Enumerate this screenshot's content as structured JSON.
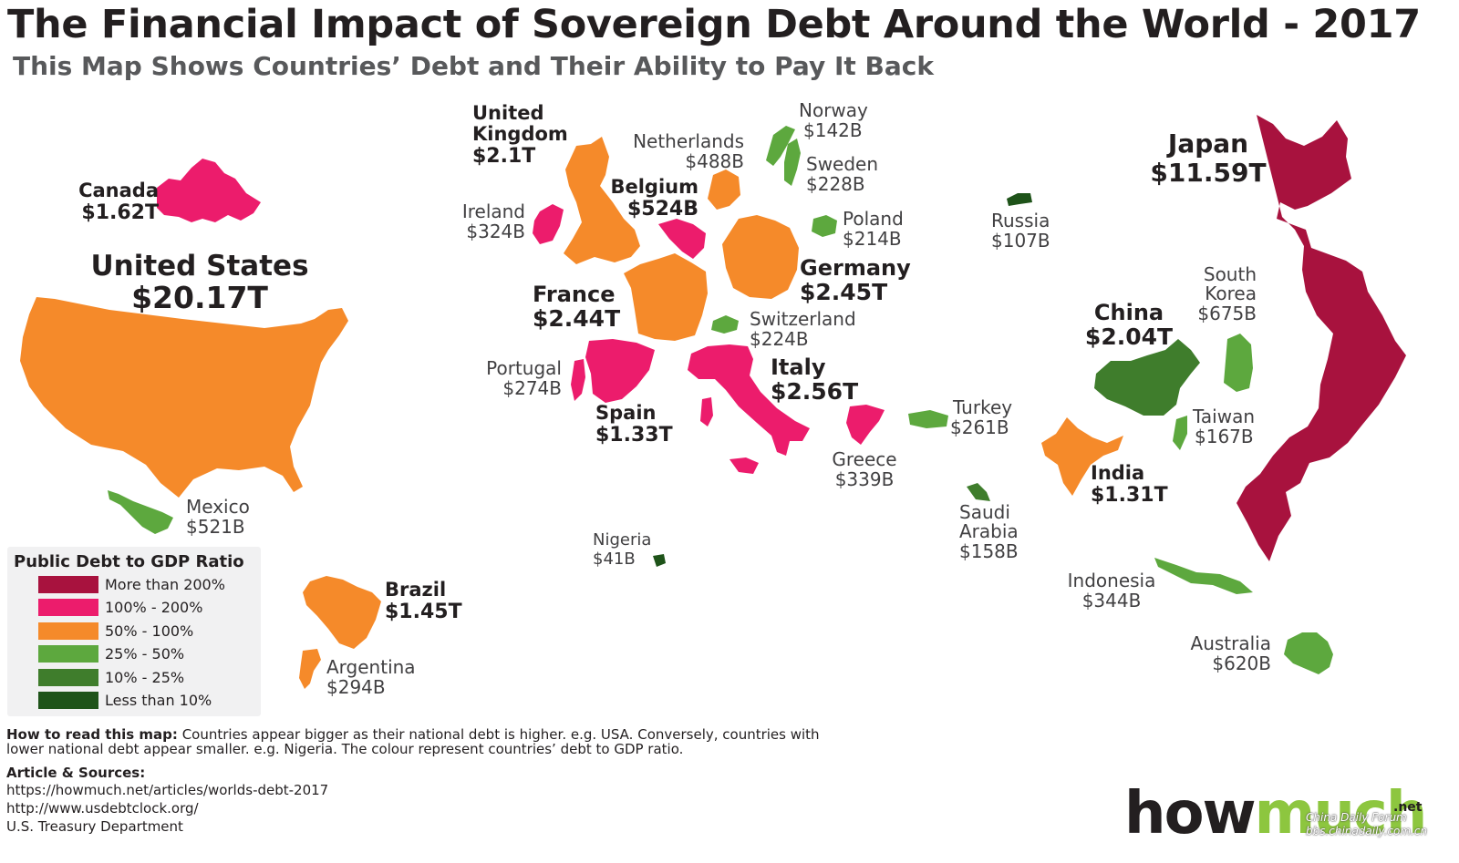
{
  "title": "The Financial Impact of Sovereign Debt Around the World - 2017",
  "subtitle": "This Map Shows Countries’ Debt and Their Ability to Pay It Back",
  "colors": {
    "more_than_200": "#a8123e",
    "100_200": "#ec1c6c",
    "50_100": "#f58a2a",
    "25_50": "#5da83e",
    "10_25": "#3f7d2c",
    "less_than_10": "#1e5319"
  },
  "countries": [
    {
      "name": "United States",
      "value": "$20.17T",
      "ratio": "50_100"
    },
    {
      "name": "Canada",
      "value": "$1.62T",
      "ratio": "100_200"
    },
    {
      "name": "Mexico",
      "value": "$521B",
      "ratio": "25_50"
    },
    {
      "name": "Brazil",
      "value": "$1.45T",
      "ratio": "50_100"
    },
    {
      "name": "Argentina",
      "value": "$294B",
      "ratio": "50_100"
    },
    {
      "name": "United Kingdom",
      "value": "$2.1T",
      "ratio": "50_100"
    },
    {
      "name": "Ireland",
      "value": "$324B",
      "ratio": "100_200"
    },
    {
      "name": "Netherlands",
      "value": "$488B",
      "ratio": "50_100"
    },
    {
      "name": "Belgium",
      "value": "$524B",
      "ratio": "100_200"
    },
    {
      "name": "France",
      "value": "$2.44T",
      "ratio": "50_100"
    },
    {
      "name": "Germany",
      "value": "$2.45T",
      "ratio": "50_100"
    },
    {
      "name": "Norway",
      "value": "$142B",
      "ratio": "25_50"
    },
    {
      "name": "Sweden",
      "value": "$228B",
      "ratio": "25_50"
    },
    {
      "name": "Poland",
      "value": "$214B",
      "ratio": "25_50"
    },
    {
      "name": "Switzerland",
      "value": "$224B",
      "ratio": "25_50"
    },
    {
      "name": "Portugal",
      "value": "$274B",
      "ratio": "100_200"
    },
    {
      "name": "Spain",
      "value": "$1.33T",
      "ratio": "100_200"
    },
    {
      "name": "Italy",
      "value": "$2.56T",
      "ratio": "100_200"
    },
    {
      "name": "Greece",
      "value": "$339B",
      "ratio": "100_200"
    },
    {
      "name": "Nigeria",
      "value": "$41B",
      "ratio": "less_than_10"
    },
    {
      "name": "Russia",
      "value": "$107B",
      "ratio": "less_than_10"
    },
    {
      "name": "Turkey",
      "value": "$261B",
      "ratio": "25_50"
    },
    {
      "name": "Saudi Arabia",
      "value": "$158B",
      "ratio": "10_25"
    },
    {
      "name": "China",
      "value": "$2.04T",
      "ratio": "10_25"
    },
    {
      "name": "India",
      "value": "$1.31T",
      "ratio": "50_100"
    },
    {
      "name": "South Korea",
      "value": "$675B",
      "ratio": "25_50"
    },
    {
      "name": "Taiwan",
      "value": "$167B",
      "ratio": "25_50"
    },
    {
      "name": "Japan",
      "value": "$11.59T",
      "ratio": "more_than_200"
    },
    {
      "name": "Indonesia",
      "value": "$344B",
      "ratio": "25_50"
    },
    {
      "name": "Australia",
      "value": "$620B",
      "ratio": "25_50"
    }
  ],
  "labels": {
    "us": {
      "name": "United States",
      "value": "$20.17T"
    },
    "canada": {
      "name": "Canada",
      "value": "$1.62T"
    },
    "mexico": {
      "name": "Mexico",
      "value": "$521B"
    },
    "brazil": {
      "name": "Brazil",
      "value": "$1.45T"
    },
    "argentina": {
      "name": "Argentina",
      "value": "$294B"
    },
    "uk": {
      "name1": "United",
      "name2": "Kingdom",
      "value": "$2.1T"
    },
    "ireland": {
      "name": "Ireland",
      "value": "$324B"
    },
    "netherlands": {
      "name": "Netherlands",
      "value": "$488B"
    },
    "belgium": {
      "name": "Belgium",
      "value": "$524B"
    },
    "france": {
      "name": "France",
      "value": "$2.44T"
    },
    "germany": {
      "name": "Germany",
      "value": "$2.45T"
    },
    "norway": {
      "name": "Norway",
      "value": "$142B"
    },
    "sweden": {
      "name": "Sweden",
      "value": "$228B"
    },
    "poland": {
      "name": "Poland",
      "value": "$214B"
    },
    "switzerland": {
      "name": "Switzerland",
      "value": "$224B"
    },
    "portugal": {
      "name": "Portugal",
      "value": "$274B"
    },
    "spain": {
      "name": "Spain",
      "value": "$1.33T"
    },
    "italy": {
      "name": "Italy",
      "value": "$2.56T"
    },
    "greece": {
      "name": "Greece",
      "value": "$339B"
    },
    "nigeria": {
      "name": "Nigeria",
      "value": "$41B"
    },
    "russia": {
      "name": "Russia",
      "value": "$107B"
    },
    "turkey": {
      "name": "Turkey",
      "value": "$261B"
    },
    "saudi": {
      "name1": "Saudi",
      "name2": "Arabia",
      "value": "$158B"
    },
    "china": {
      "name": "China",
      "value": "$2.04T"
    },
    "india": {
      "name": "India",
      "value": "$1.31T"
    },
    "korea": {
      "name1": "South",
      "name2": "Korea",
      "value": "$675B"
    },
    "taiwan": {
      "name": "Taiwan",
      "value": "$167B"
    },
    "japan": {
      "name": "Japan",
      "value": "$11.59T"
    },
    "indonesia": {
      "name": "Indonesia",
      "value": "$344B"
    },
    "australia": {
      "name": "Australia",
      "value": "$620B"
    }
  },
  "legend": {
    "title": "Public Debt to GDP Ratio",
    "items": [
      {
        "label": "More than 200%",
        "color": "#a8123e"
      },
      {
        "label": "100% - 200%",
        "color": "#ec1c6c"
      },
      {
        "label": "50% - 100%",
        "color": "#f58a2a"
      },
      {
        "label": "25% - 50%",
        "color": "#5da83e"
      },
      {
        "label": "10% - 25%",
        "color": "#3f7d2c"
      },
      {
        "label": "Less than 10%",
        "color": "#1e5319"
      }
    ]
  },
  "howto": {
    "lead": "How to read this map:",
    "text": " Countries appear bigger as their national debt is higher. e.g. USA. Conversely, countries with lower national debt appear smaller. e.g. Nigeria. The colour represent countries’ debt to GDP ratio."
  },
  "sources": {
    "title": "Article & Sources:",
    "items": [
      "https://howmuch.net/articles/worlds-debt-2017",
      "http://www.usdebtclock.org/",
      "U.S. Treasury Department"
    ]
  },
  "logo": {
    "how": "how",
    "much": "much",
    "net": ".net"
  },
  "watermark": {
    "line1": "China Daily  Forum",
    "line2": "bbs.chinadaily.com.cn"
  }
}
